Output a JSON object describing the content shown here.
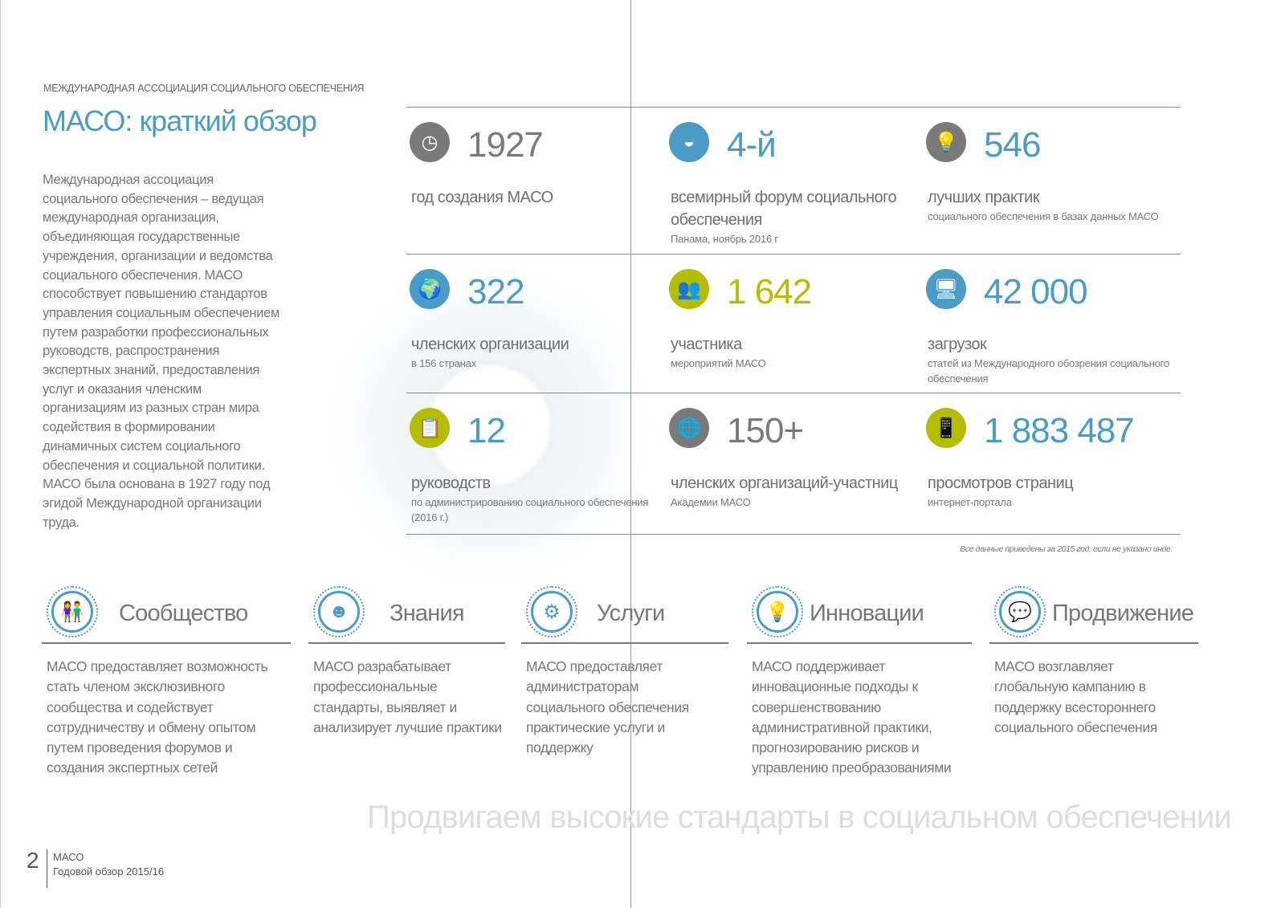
{
  "header": {
    "org": "МЕЖДУНАРОДНАЯ АССОЦИАЦИЯ СОЦИАЛЬНОГО ОБЕСПЕЧЕНИЯ",
    "title": "МАСО: краткий обзор"
  },
  "intro": "Международная ассоциация социального обеспечения – ведущая международная организация, объединяющая государственные учреждения, организации и ведомства социального обеспечения. МАСО способствует повышению стандартов управления социальным обеспечением путем разработки профессиональных руководств, распространения экспертных знаний, предоставления услуг и оказания членским организациям из разных стран мира содействия в формировании динамичных систем социального обеспечения и социальной политики. МАСО была основана в 1927 году под эгидой Международной организации труда.",
  "colors": {
    "blue": "#4a9cc7",
    "green": "#b5bd00",
    "gray": "#7a7a7a"
  },
  "stats": [
    {
      "icon": "clock-icon",
      "value": "1927",
      "label": "год создания МАСО",
      "sub": ""
    },
    {
      "icon": "forum-globe-icon",
      "value": "4-й",
      "label": "всемирный  форум социального обеспечения",
      "sub": "Панама, ноябрь 2016 г"
    },
    {
      "icon": "lightbulb-icon",
      "value": "546",
      "label": "лучших практик",
      "sub": "социального обеспечения в базах данных МАСО"
    },
    {
      "icon": "globe-icon",
      "value": "322",
      "label": "членских организации",
      "sub": "в 156 странах"
    },
    {
      "icon": "people-icon",
      "value": "1 642",
      "label": "участника",
      "sub": "мероприятий МАСО"
    },
    {
      "icon": "download-monitor-icon",
      "value": "42 000",
      "label": "загрузок",
      "sub": "статей из Международного обозрения социального обеспечения"
    },
    {
      "icon": "clipboard-icon",
      "value": "12",
      "label": "руководств",
      "sub": "по администрированию социального обеспечения (2016 г.)"
    },
    {
      "icon": "globe-network-icon",
      "value": "150+",
      "label": "членских организаций-участниц",
      "sub": "Академии МАСО"
    },
    {
      "icon": "mobile-icon",
      "value": "1 883 487",
      "label": "просмотров страниц",
      "sub": "интернет-портала"
    }
  ],
  "note": "Все данные приведены за 2015 год, если не указано иное.",
  "pillars": [
    {
      "icon": "community-icon",
      "title": "Сообщество",
      "text": "МАСО предоставляет возможность стать членом эксклюзивного сообщества и содействует сотрудничеству и обмену опытом путем проведения форумов и создания экспертных сетей"
    },
    {
      "icon": "knowledge-head-icon",
      "title": "Знания",
      "text": "МАСО разрабатывает профессиональные стандарты, выявляет и анализирует лучшие практики"
    },
    {
      "icon": "gears-icon",
      "title": "Услуги",
      "text": "МАСО предоставляет администраторам социального обеспечения практические услуги и поддержку"
    },
    {
      "icon": "lightbulb-icon",
      "title": "Инновации",
      "text": "МАСО поддерживает инновационные подходы к совершенствованию административной практики, прогнозированию рисков и управлению преобразованиями"
    },
    {
      "icon": "speech-bubble-icon",
      "title": "Продвижение",
      "text": "МАСО возглавляет глобальную кампанию в поддержку всестороннего социального обеспечения"
    }
  ],
  "slogan": "Продвигаем высокие стандарты в социальном обеспечении",
  "footer": {
    "page": "2",
    "org": "МАСО",
    "doc": "Годовой обзор 2015/16"
  }
}
